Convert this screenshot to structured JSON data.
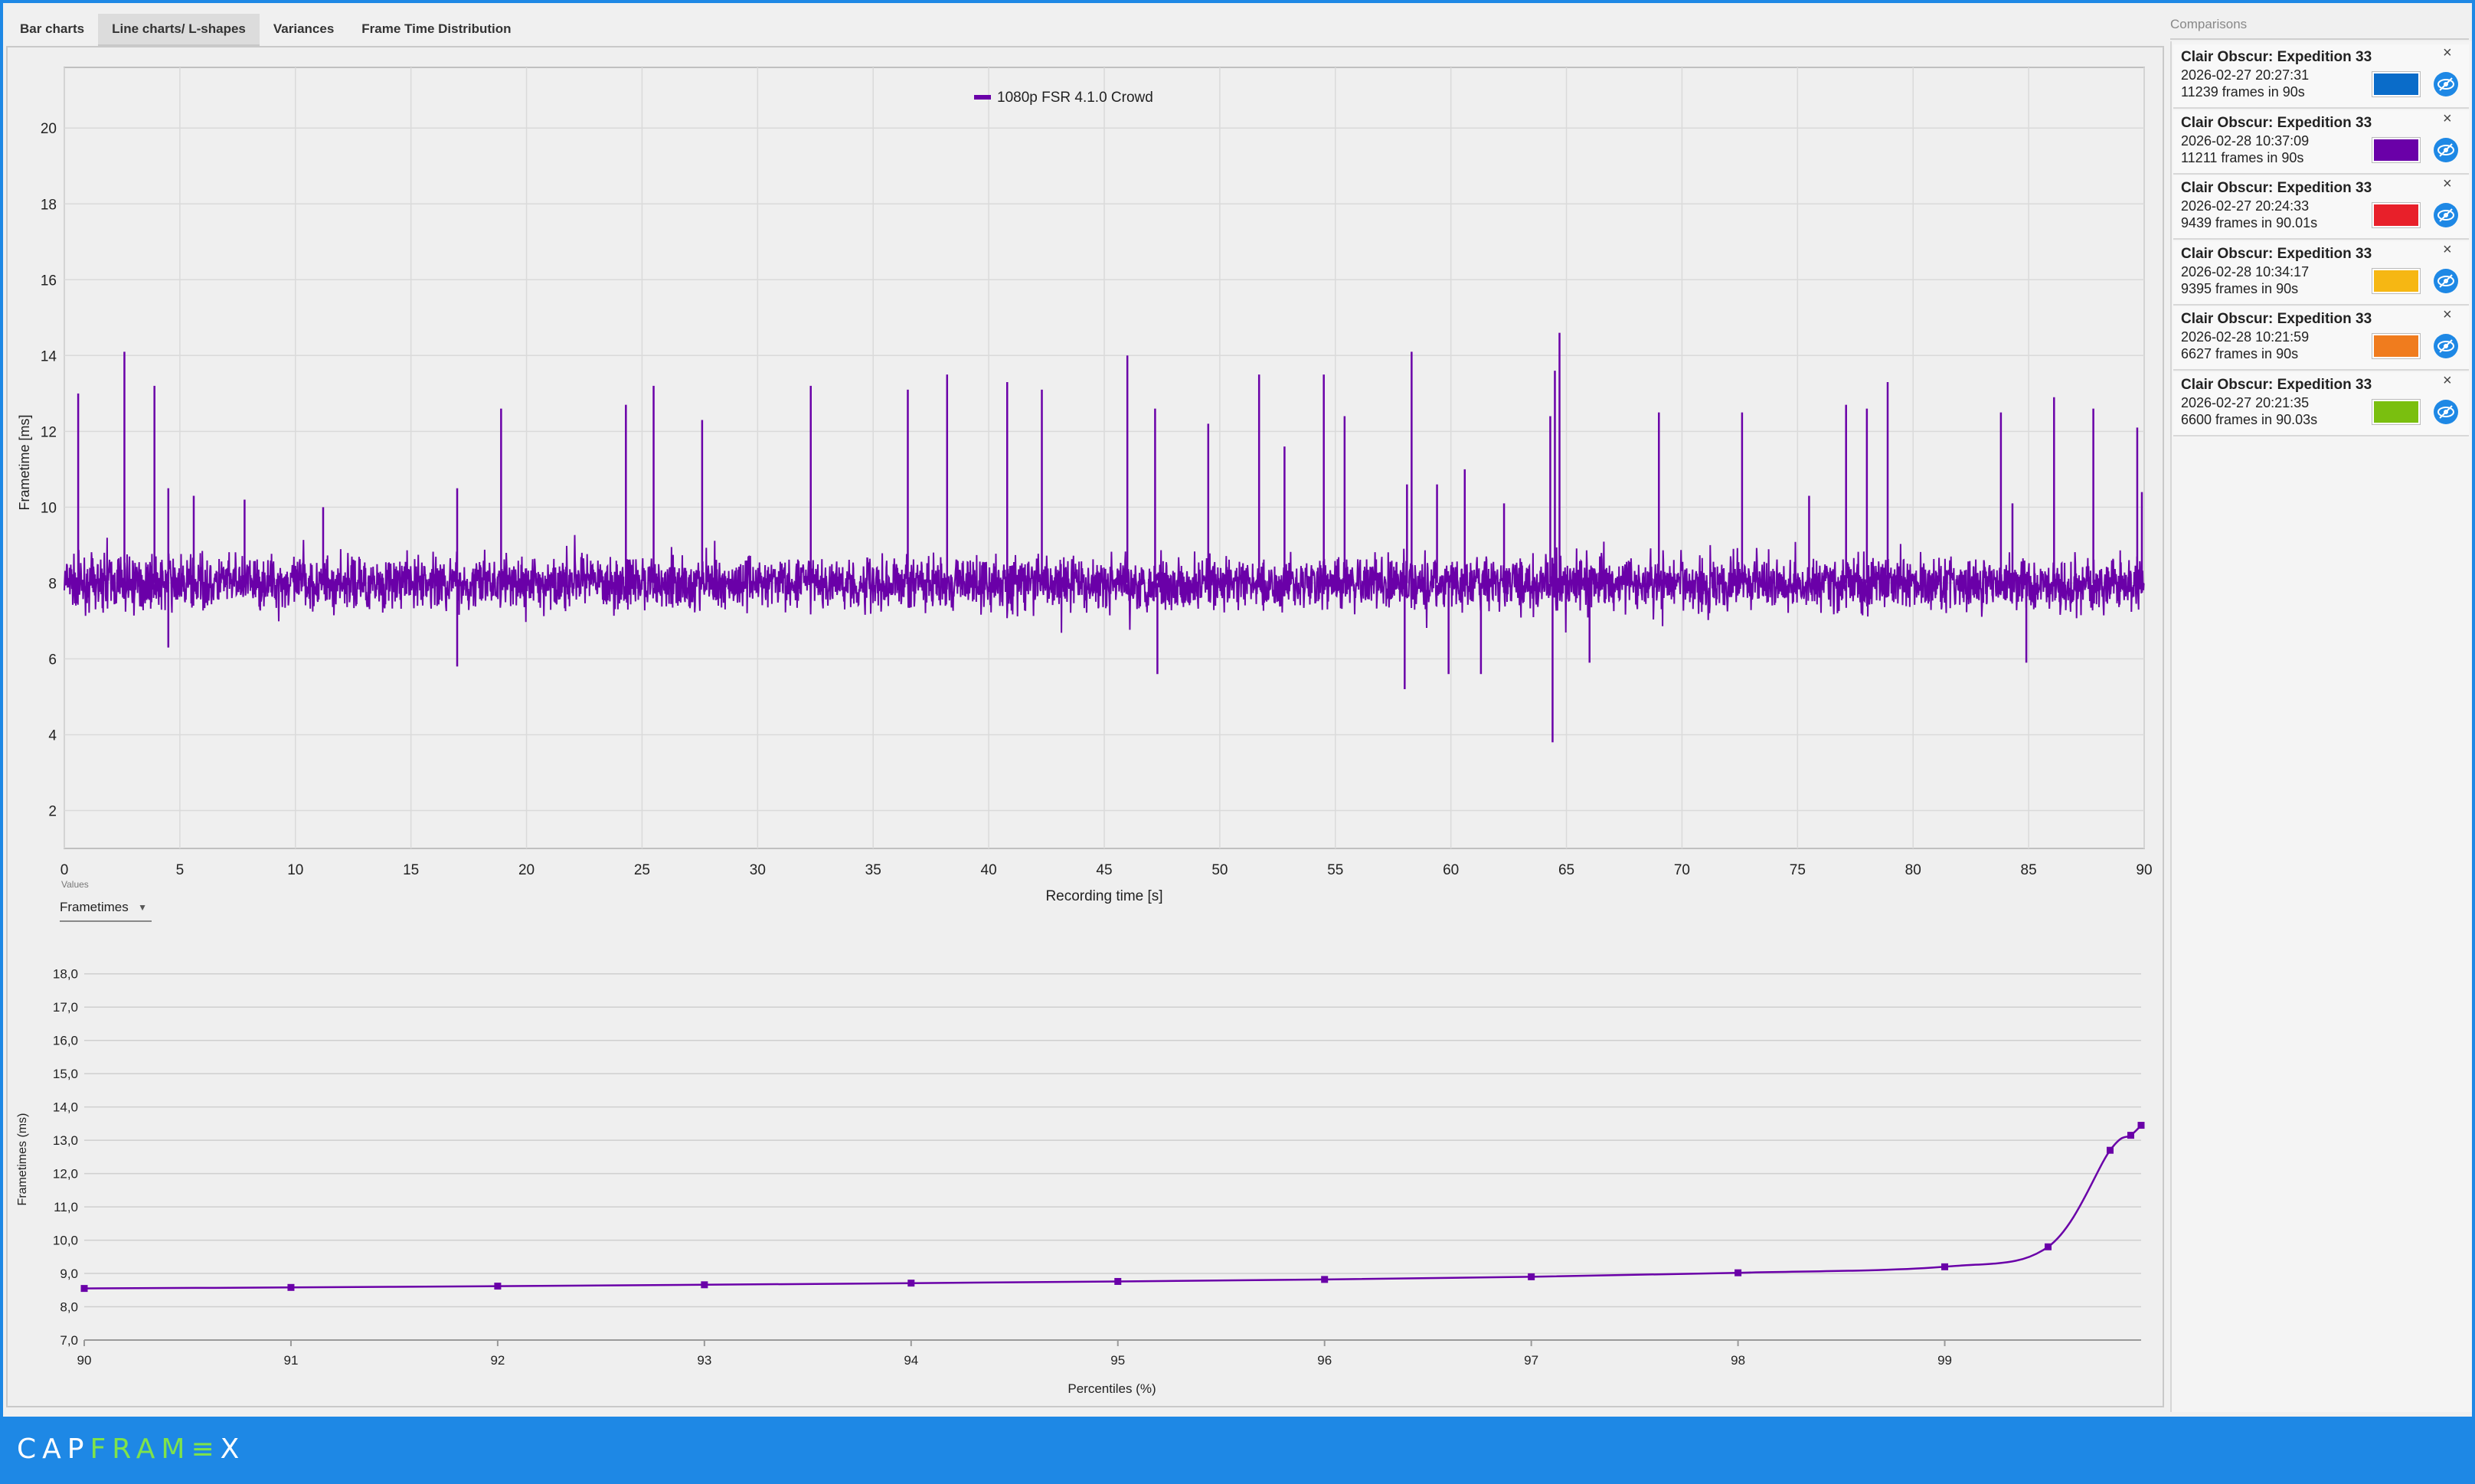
{
  "tabs": [
    {
      "label": "Bar charts"
    },
    {
      "label": "Line charts/ L-shapes"
    },
    {
      "label": "Variances"
    },
    {
      "label": "Frame Time Distribution"
    }
  ],
  "active_tab": 1,
  "values_selector": {
    "caption": "Values",
    "selected": "Frametimes"
  },
  "comparisons": {
    "title": "Comparisons",
    "items": [
      {
        "game": "Clair Obscur: Expedition 33",
        "date": "2026-02-27 20:27:31",
        "frames": "11239 frames in 90s",
        "color": "#0a6cc9"
      },
      {
        "game": "Clair Obscur: Expedition 33",
        "date": "2026-02-28 10:37:09",
        "frames": "11211 frames in 90s",
        "color": "#6a00a8"
      },
      {
        "game": "Clair Obscur: Expedition 33",
        "date": "2026-02-27 20:24:33",
        "frames": "9439 frames in 90.01s",
        "color": "#e8202a"
      },
      {
        "game": "Clair Obscur: Expedition 33",
        "date": "2026-02-28 10:34:17",
        "frames": "9395 frames in 90s",
        "color": "#f6b713"
      },
      {
        "game": "Clair Obscur: Expedition 33",
        "date": "2026-02-28 10:21:59",
        "frames": "6627 frames in 90s",
        "color": "#f07c1e"
      },
      {
        "game": "Clair Obscur: Expedition 33",
        "date": "2026-02-27 20:21:35",
        "frames": "6600 frames in 90.03s",
        "color": "#7abf0f"
      }
    ]
  },
  "logo": {
    "part1": "CAP",
    "part2": "FRAM",
    "part3": "≡",
    "part4": "X"
  },
  "chart_data": [
    {
      "type": "line",
      "title": "",
      "xlabel": "Recording time [s]",
      "ylabel": "Frametime [ms]",
      "xlim": [
        0,
        90
      ],
      "ylim": [
        1,
        21.6
      ],
      "xticks": [
        0,
        5,
        10,
        15,
        20,
        25,
        30,
        35,
        40,
        45,
        50,
        55,
        60,
        65,
        70,
        75,
        80,
        85,
        90
      ],
      "yticks": [
        2,
        4,
        6,
        8,
        10,
        12,
        14,
        16,
        18,
        20
      ],
      "grid": true,
      "legend": "top-center",
      "series": [
        {
          "name": "1080p FSR 4.1.0 Crowd",
          "color": "#6a00a8",
          "baseline": 8.0,
          "noise_band": [
            7.0,
            9.0
          ],
          "spikes": [
            [
              0.6,
              13.0
            ],
            [
              2.6,
              14.1
            ],
            [
              3.9,
              13.2
            ],
            [
              4.5,
              10.5
            ],
            [
              5.6,
              10.3
            ],
            [
              7.8,
              10.2
            ],
            [
              11.2,
              10.0
            ],
            [
              17.0,
              10.5
            ],
            [
              18.9,
              12.6
            ],
            [
              24.3,
              12.7
            ],
            [
              25.5,
              13.2
            ],
            [
              27.6,
              12.3
            ],
            [
              32.3,
              13.2
            ],
            [
              36.5,
              13.1
            ],
            [
              38.2,
              13.5
            ],
            [
              40.8,
              13.3
            ],
            [
              42.3,
              13.1
            ],
            [
              46.0,
              14.0
            ],
            [
              47.2,
              12.6
            ],
            [
              49.5,
              12.2
            ],
            [
              51.7,
              13.5
            ],
            [
              52.8,
              11.6
            ],
            [
              54.5,
              13.5
            ],
            [
              55.4,
              12.4
            ],
            [
              58.3,
              14.1
            ],
            [
              58.1,
              10.6
            ],
            [
              59.4,
              10.6
            ],
            [
              60.6,
              11.0
            ],
            [
              62.3,
              10.1
            ],
            [
              64.5,
              13.6
            ],
            [
              64.7,
              14.6
            ],
            [
              64.3,
              12.4
            ],
            [
              69.0,
              12.5
            ],
            [
              72.6,
              12.5
            ],
            [
              75.5,
              10.3
            ],
            [
              77.1,
              12.7
            ],
            [
              78.0,
              12.6
            ],
            [
              78.9,
              13.3
            ],
            [
              83.8,
              12.5
            ],
            [
              84.3,
              10.1
            ],
            [
              86.1,
              12.9
            ],
            [
              87.8,
              12.6
            ],
            [
              89.7,
              12.1
            ],
            [
              89.9,
              10.4
            ]
          ],
          "dips": [
            [
              4.5,
              6.3
            ],
            [
              17.0,
              5.8
            ],
            [
              47.3,
              5.6
            ],
            [
              58.0,
              5.2
            ],
            [
              59.9,
              5.6
            ],
            [
              61.3,
              5.6
            ],
            [
              64.4,
              3.8
            ],
            [
              66.0,
              5.9
            ],
            [
              84.9,
              5.9
            ]
          ]
        }
      ]
    },
    {
      "type": "line",
      "title": "",
      "xlabel": "Percentiles (%)",
      "ylabel": "Frametimes (ms)",
      "xlim": [
        90,
        99.95
      ],
      "ylim": [
        7.0,
        18.5
      ],
      "xticks": [
        90,
        91,
        92,
        93,
        94,
        95,
        96,
        97,
        98,
        99
      ],
      "ytick_labels": [
        "7,0",
        "8,0",
        "9,0",
        "10,0",
        "11,0",
        "12,0",
        "13,0",
        "14,0",
        "15,0",
        "16,0",
        "17,0",
        "18,0"
      ],
      "grid": true,
      "series": [
        {
          "name": "",
          "color": "#6a00a8",
          "x": [
            90,
            91,
            92,
            93,
            94,
            95,
            96,
            97,
            98,
            99,
            99.5,
            99.8,
            99.9,
            99.95
          ],
          "y": [
            8.55,
            8.58,
            8.62,
            8.66,
            8.71,
            8.76,
            8.82,
            8.9,
            9.02,
            9.2,
            9.8,
            12.7,
            13.15,
            13.45
          ]
        }
      ]
    }
  ]
}
